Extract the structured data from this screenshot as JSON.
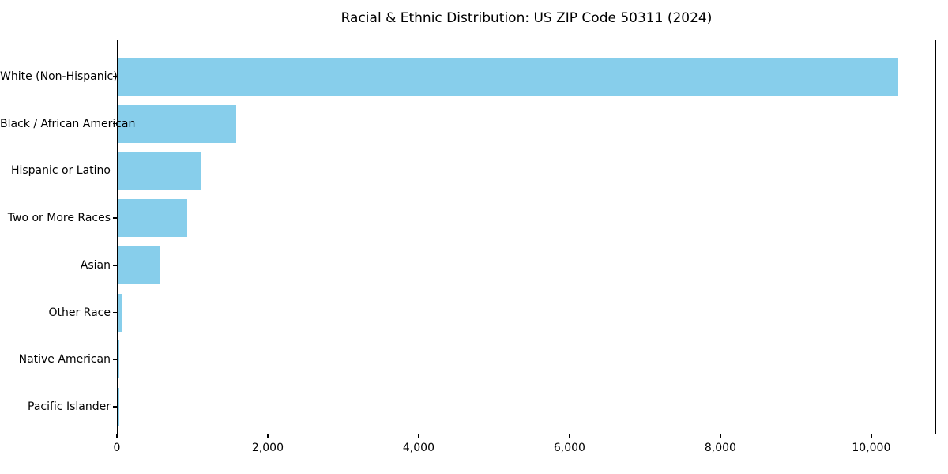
{
  "chart_data": {
    "type": "bar",
    "orientation": "horizontal",
    "title": "Racial & Ethnic Distribution: US ZIP Code 50311 (2024)",
    "categories": [
      "White (Non-Hispanic)",
      "Black / African American",
      "Hispanic or Latino",
      "Two or More Races",
      "Asian",
      "Other Race",
      "Native American",
      "Pacific Islander"
    ],
    "values": [
      10345,
      1570,
      1110,
      920,
      555,
      45,
      15,
      3
    ],
    "xlabel": "",
    "ylabel": "",
    "xlim": [
      0,
      10860
    ],
    "x_ticks": [
      0,
      2000,
      4000,
      6000,
      8000,
      10000
    ],
    "x_tick_labels": [
      "0",
      "2,000",
      "4,000",
      "6,000",
      "8,000",
      "10,000"
    ],
    "bar_color": "#87CEEB",
    "background_color": "#FFFFFF",
    "axis_color": "#000000",
    "grid": false,
    "legend": "none"
  }
}
